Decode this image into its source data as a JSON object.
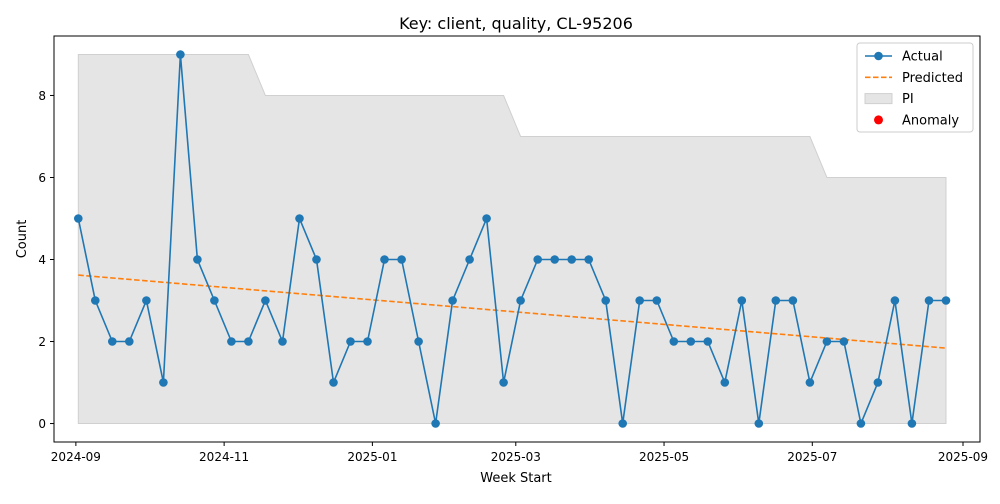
{
  "chart_data": {
    "type": "line",
    "title": "Key: client, quality, CL-95206",
    "xlabel": "Week Start",
    "ylabel": "Count",
    "x_ticks": [
      {
        "date": "2024-09-01",
        "label": "2024-09"
      },
      {
        "date": "2024-11-01",
        "label": "2024-11"
      },
      {
        "date": "2025-01-01",
        "label": "2025-01"
      },
      {
        "date": "2025-03-01",
        "label": "2025-03"
      },
      {
        "date": "2025-05-01",
        "label": "2025-05"
      },
      {
        "date": "2025-07-01",
        "label": "2025-07"
      },
      {
        "date": "2025-09-01",
        "label": "2025-09"
      }
    ],
    "y_ticks": [
      0,
      2,
      4,
      6,
      8
    ],
    "xlim": [
      "2024-08-23",
      "2025-09-08"
    ],
    "ylim": [
      -0.45,
      9.45
    ],
    "grid": false,
    "legend_position": "top-right",
    "legend": [
      {
        "label": "Actual",
        "kind": "line-marker",
        "color": "#1f77b4"
      },
      {
        "label": "Predicted",
        "kind": "dashed",
        "color": "#ff7f0e"
      },
      {
        "label": "PI",
        "kind": "patch",
        "color": "#e5e5e5"
      },
      {
        "label": "Anomaly",
        "kind": "dot",
        "color": "#ff0000"
      }
    ],
    "series": [
      {
        "name": "Actual",
        "color": "#1f77b4",
        "x": [
          "2024-09-02",
          "2024-09-09",
          "2024-09-16",
          "2024-09-23",
          "2024-09-30",
          "2024-10-07",
          "2024-10-14",
          "2024-10-21",
          "2024-10-28",
          "2024-11-04",
          "2024-11-11",
          "2024-11-18",
          "2024-11-25",
          "2024-12-02",
          "2024-12-09",
          "2024-12-16",
          "2024-12-23",
          "2024-12-30",
          "2025-01-06",
          "2025-01-13",
          "2025-01-20",
          "2025-01-27",
          "2025-02-03",
          "2025-02-10",
          "2025-02-17",
          "2025-02-24",
          "2025-03-03",
          "2025-03-10",
          "2025-03-17",
          "2025-03-24",
          "2025-03-31",
          "2025-04-07",
          "2025-04-14",
          "2025-04-21",
          "2025-04-28",
          "2025-05-05",
          "2025-05-12",
          "2025-05-19",
          "2025-05-26",
          "2025-06-02",
          "2025-06-09",
          "2025-06-16",
          "2025-06-23",
          "2025-06-30",
          "2025-07-07",
          "2025-07-14",
          "2025-07-21",
          "2025-07-28",
          "2025-08-04",
          "2025-08-11",
          "2025-08-18",
          "2025-08-25"
        ],
        "values": [
          5,
          3,
          2,
          2,
          3,
          1,
          9,
          4,
          3,
          2,
          2,
          3,
          2,
          5,
          4,
          1,
          2,
          2,
          4,
          4,
          2,
          0,
          3,
          4,
          5,
          1,
          3,
          4,
          4,
          4,
          4,
          3,
          0,
          3,
          3,
          2,
          2,
          2,
          1,
          3,
          0,
          3,
          3,
          1,
          2,
          2,
          0,
          1,
          3,
          0,
          3,
          3
        ]
      },
      {
        "name": "Predicted",
        "color": "#ff7f0e",
        "x": [
          "2024-09-02",
          "2025-08-25"
        ],
        "values": [
          3.62,
          1.84
        ]
      }
    ],
    "interval": {
      "name": "PI",
      "color": "#e5e5e5",
      "lower": 0,
      "upper_steps": [
        {
          "x": "2024-09-02",
          "value": 9
        },
        {
          "x": "2024-11-11",
          "value": 9
        },
        {
          "x": "2024-11-18",
          "value": 8
        },
        {
          "x": "2025-02-24",
          "value": 8
        },
        {
          "x": "2025-03-03",
          "value": 7
        },
        {
          "x": "2025-06-30",
          "value": 7
        },
        {
          "x": "2025-07-07",
          "value": 6
        },
        {
          "x": "2025-08-25",
          "value": 6
        }
      ]
    },
    "anomalies": []
  }
}
